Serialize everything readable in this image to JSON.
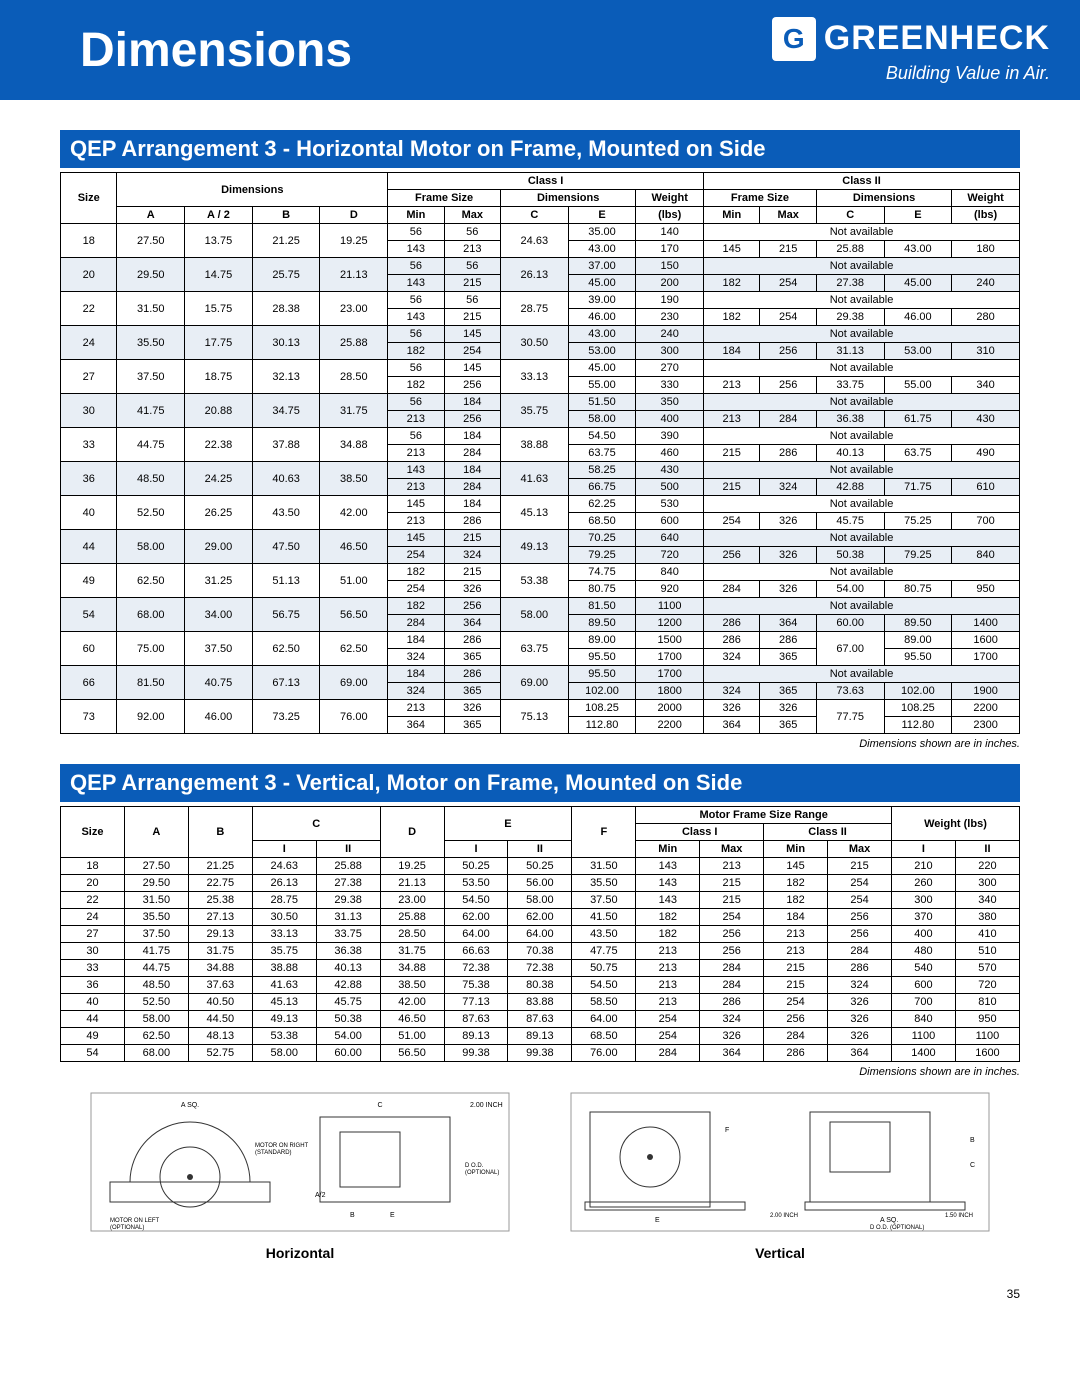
{
  "header": {
    "title": "Dimensions",
    "logo_mark": "G",
    "logo_name": "GREENHECK",
    "logo_tag": "Building Value in Air."
  },
  "section1": {
    "title": "QEP Arrangement 3 - Horizontal Motor on Frame, Mounted on Side",
    "groupHeaders": {
      "size": "Size",
      "dims": "Dimensions",
      "class1": "Class I",
      "class2": "Class II",
      "frameSize": "Frame Size",
      "dims2": "Dimensions",
      "weight": "Weight"
    },
    "colHeaders": [
      "A",
      "A / 2",
      "B",
      "D",
      "Min",
      "Max",
      "C",
      "E",
      "(lbs)",
      "Min",
      "Max",
      "C",
      "E",
      "(lbs)"
    ],
    "na": "Not available",
    "rows": [
      {
        "size": "18",
        "A": "27.50",
        "A2": "13.75",
        "B": "21.25",
        "D": "19.25",
        "sub": [
          {
            "min": "56",
            "max": "56",
            "C": "24.63",
            "E": "35.00",
            "W": "140",
            "c2": [
              "",
              "",
              "",
              "",
              ""
            ],
            "na": true
          },
          {
            "min": "143",
            "max": "213",
            "C": "",
            "E": "43.00",
            "W": "170",
            "c2": [
              "145",
              "215",
              "25.88",
              "43.00",
              "180"
            ],
            "na": false
          }
        ]
      },
      {
        "size": "20",
        "A": "29.50",
        "A2": "14.75",
        "B": "25.75",
        "D": "21.13",
        "sub": [
          {
            "min": "56",
            "max": "56",
            "C": "26.13",
            "E": "37.00",
            "W": "150",
            "c2": [
              "",
              "",
              "",
              "",
              ""
            ],
            "na": true
          },
          {
            "min": "143",
            "max": "215",
            "C": "",
            "E": "45.00",
            "W": "200",
            "c2": [
              "182",
              "254",
              "27.38",
              "45.00",
              "240"
            ],
            "na": false
          }
        ]
      },
      {
        "size": "22",
        "A": "31.50",
        "A2": "15.75",
        "B": "28.38",
        "D": "23.00",
        "sub": [
          {
            "min": "56",
            "max": "56",
            "C": "28.75",
            "E": "39.00",
            "W": "190",
            "c2": [
              "",
              "",
              "",
              "",
              ""
            ],
            "na": true
          },
          {
            "min": "143",
            "max": "215",
            "C": "",
            "E": "46.00",
            "W": "230",
            "c2": [
              "182",
              "254",
              "29.38",
              "46.00",
              "280"
            ],
            "na": false
          }
        ]
      },
      {
        "size": "24",
        "A": "35.50",
        "A2": "17.75",
        "B": "30.13",
        "D": "25.88",
        "sub": [
          {
            "min": "56",
            "max": "145",
            "C": "30.50",
            "E": "43.00",
            "W": "240",
            "c2": [
              "",
              "",
              "",
              "",
              ""
            ],
            "na": true
          },
          {
            "min": "182",
            "max": "254",
            "C": "",
            "E": "53.00",
            "W": "300",
            "c2": [
              "184",
              "256",
              "31.13",
              "53.00",
              "310"
            ],
            "na": false
          }
        ]
      },
      {
        "size": "27",
        "A": "37.50",
        "A2": "18.75",
        "B": "32.13",
        "D": "28.50",
        "sub": [
          {
            "min": "56",
            "max": "145",
            "C": "33.13",
            "E": "45.00",
            "W": "270",
            "c2": [
              "",
              "",
              "",
              "",
              ""
            ],
            "na": true
          },
          {
            "min": "182",
            "max": "256",
            "C": "",
            "E": "55.00",
            "W": "330",
            "c2": [
              "213",
              "256",
              "33.75",
              "55.00",
              "340"
            ],
            "na": false
          }
        ]
      },
      {
        "size": "30",
        "A": "41.75",
        "A2": "20.88",
        "B": "34.75",
        "D": "31.75",
        "sub": [
          {
            "min": "56",
            "max": "184",
            "C": "35.75",
            "E": "51.50",
            "W": "350",
            "c2": [
              "",
              "",
              "",
              "",
              ""
            ],
            "na": true
          },
          {
            "min": "213",
            "max": "256",
            "C": "",
            "E": "58.00",
            "W": "400",
            "c2": [
              "213",
              "284",
              "36.38",
              "61.75",
              "430"
            ],
            "na": false
          }
        ]
      },
      {
        "size": "33",
        "A": "44.75",
        "A2": "22.38",
        "B": "37.88",
        "D": "34.88",
        "sub": [
          {
            "min": "56",
            "max": "184",
            "C": "38.88",
            "E": "54.50",
            "W": "390",
            "c2": [
              "",
              "",
              "",
              "",
              ""
            ],
            "na": true
          },
          {
            "min": "213",
            "max": "284",
            "C": "",
            "E": "63.75",
            "W": "460",
            "c2": [
              "215",
              "286",
              "40.13",
              "63.75",
              "490"
            ],
            "na": false
          }
        ]
      },
      {
        "size": "36",
        "A": "48.50",
        "A2": "24.25",
        "B": "40.63",
        "D": "38.50",
        "sub": [
          {
            "min": "143",
            "max": "184",
            "C": "41.63",
            "E": "58.25",
            "W": "430",
            "c2": [
              "",
              "",
              "",
              "",
              ""
            ],
            "na": true
          },
          {
            "min": "213",
            "max": "284",
            "C": "",
            "E": "66.75",
            "W": "500",
            "c2": [
              "215",
              "324",
              "42.88",
              "71.75",
              "610"
            ],
            "na": false
          }
        ]
      },
      {
        "size": "40",
        "A": "52.50",
        "A2": "26.25",
        "B": "43.50",
        "D": "42.00",
        "sub": [
          {
            "min": "145",
            "max": "184",
            "C": "45.13",
            "E": "62.25",
            "W": "530",
            "c2": [
              "",
              "",
              "",
              "",
              ""
            ],
            "na": true
          },
          {
            "min": "213",
            "max": "286",
            "C": "",
            "E": "68.50",
            "W": "600",
            "c2": [
              "254",
              "326",
              "45.75",
              "75.25",
              "700"
            ],
            "na": false
          }
        ]
      },
      {
        "size": "44",
        "A": "58.00",
        "A2": "29.00",
        "B": "47.50",
        "D": "46.50",
        "sub": [
          {
            "min": "145",
            "max": "215",
            "C": "49.13",
            "E": "70.25",
            "W": "640",
            "c2": [
              "",
              "",
              "",
              "",
              ""
            ],
            "na": true
          },
          {
            "min": "254",
            "max": "324",
            "C": "",
            "E": "79.25",
            "W": "720",
            "c2": [
              "256",
              "326",
              "50.38",
              "79.25",
              "840"
            ],
            "na": false
          }
        ]
      },
      {
        "size": "49",
        "A": "62.50",
        "A2": "31.25",
        "B": "51.13",
        "D": "51.00",
        "sub": [
          {
            "min": "182",
            "max": "215",
            "C": "53.38",
            "E": "74.75",
            "W": "840",
            "c2": [
              "",
              "",
              "",
              "",
              ""
            ],
            "na": true
          },
          {
            "min": "254",
            "max": "326",
            "C": "",
            "E": "80.75",
            "W": "920",
            "c2": [
              "284",
              "326",
              "54.00",
              "80.75",
              "950"
            ],
            "na": false
          }
        ]
      },
      {
        "size": "54",
        "A": "68.00",
        "A2": "34.00",
        "B": "56.75",
        "D": "56.50",
        "sub": [
          {
            "min": "182",
            "max": "256",
            "C": "58.00",
            "E": "81.50",
            "W": "1100",
            "c2": [
              "",
              "",
              "",
              "",
              ""
            ],
            "na": true
          },
          {
            "min": "284",
            "max": "364",
            "C": "",
            "E": "89.50",
            "W": "1200",
            "c2": [
              "286",
              "364",
              "60.00",
              "89.50",
              "1400"
            ],
            "na": false
          }
        ]
      },
      {
        "size": "60",
        "A": "75.00",
        "A2": "37.50",
        "B": "62.50",
        "D": "62.50",
        "sub": [
          {
            "min": "184",
            "max": "286",
            "C": "63.75",
            "E": "89.00",
            "W": "1500",
            "c2": [
              "286",
              "286",
              "67.00",
              "89.00",
              "1600"
            ],
            "na": false
          },
          {
            "min": "324",
            "max": "365",
            "C": "",
            "E": "95.50",
            "W": "1700",
            "c2": [
              "324",
              "365",
              "",
              "95.50",
              "1700"
            ],
            "na": false
          }
        ]
      },
      {
        "size": "66",
        "A": "81.50",
        "A2": "40.75",
        "B": "67.13",
        "D": "69.00",
        "sub": [
          {
            "min": "184",
            "max": "286",
            "C": "69.00",
            "E": "95.50",
            "W": "1700",
            "c2": [
              "",
              "",
              "",
              "",
              ""
            ],
            "na": true
          },
          {
            "min": "324",
            "max": "365",
            "C": "",
            "E": "102.00",
            "W": "1800",
            "c2": [
              "324",
              "365",
              "73.63",
              "102.00",
              "1900"
            ],
            "na": false
          }
        ]
      },
      {
        "size": "73",
        "A": "92.00",
        "A2": "46.00",
        "B": "73.25",
        "D": "76.00",
        "sub": [
          {
            "min": "213",
            "max": "326",
            "C": "75.13",
            "E": "108.25",
            "W": "2000",
            "c2": [
              "326",
              "326",
              "77.75",
              "108.25",
              "2200"
            ],
            "na": false
          },
          {
            "min": "364",
            "max": "365",
            "C": "",
            "E": "112.80",
            "W": "2200",
            "c2": [
              "364",
              "365",
              "",
              "112.80",
              "2300"
            ],
            "na": false
          }
        ]
      }
    ]
  },
  "note": "Dimensions shown are in inches.",
  "section2": {
    "title": "QEP Arrangement 3 - Vertical, Motor on Frame, Mounted on Side",
    "groupHeaders": {
      "size": "Size",
      "A": "A",
      "B": "B",
      "C": "C",
      "D": "D",
      "E": "E",
      "F": "F",
      "mfsr": "Motor Frame Size Range",
      "c1": "Class I",
      "c2": "Class II",
      "wt": "Weight (lbs)"
    },
    "sub": [
      "I",
      "II",
      "I",
      "II",
      "Min",
      "Max",
      "Min",
      "Max",
      "I",
      "II"
    ],
    "rows": [
      [
        "18",
        "27.50",
        "21.25",
        "24.63",
        "25.88",
        "19.25",
        "50.25",
        "50.25",
        "31.50",
        "143",
        "213",
        "145",
        "215",
        "210",
        "220"
      ],
      [
        "20",
        "29.50",
        "22.75",
        "26.13",
        "27.38",
        "21.13",
        "53.50",
        "56.00",
        "35.50",
        "143",
        "215",
        "182",
        "254",
        "260",
        "300"
      ],
      [
        "22",
        "31.50",
        "25.38",
        "28.75",
        "29.38",
        "23.00",
        "54.50",
        "58.00",
        "37.50",
        "143",
        "215",
        "182",
        "254",
        "300",
        "340"
      ],
      [
        "24",
        "35.50",
        "27.13",
        "30.50",
        "31.13",
        "25.88",
        "62.00",
        "62.00",
        "41.50",
        "182",
        "254",
        "184",
        "256",
        "370",
        "380"
      ],
      [
        "27",
        "37.50",
        "29.13",
        "33.13",
        "33.75",
        "28.50",
        "64.00",
        "64.00",
        "43.50",
        "182",
        "256",
        "213",
        "256",
        "400",
        "410"
      ],
      [
        "30",
        "41.75",
        "31.75",
        "35.75",
        "36.38",
        "31.75",
        "66.63",
        "70.38",
        "47.75",
        "213",
        "256",
        "213",
        "284",
        "480",
        "510"
      ],
      [
        "33",
        "44.75",
        "34.88",
        "38.88",
        "40.13",
        "34.88",
        "72.38",
        "72.38",
        "50.75",
        "213",
        "284",
        "215",
        "286",
        "540",
        "570"
      ],
      [
        "36",
        "48.50",
        "37.63",
        "41.63",
        "42.88",
        "38.50",
        "75.38",
        "80.38",
        "54.50",
        "213",
        "284",
        "215",
        "324",
        "600",
        "720"
      ],
      [
        "40",
        "52.50",
        "40.50",
        "45.13",
        "45.75",
        "42.00",
        "77.13",
        "83.88",
        "58.50",
        "213",
        "286",
        "254",
        "326",
        "700",
        "810"
      ],
      [
        "44",
        "58.00",
        "44.50",
        "49.13",
        "50.38",
        "46.50",
        "87.63",
        "87.63",
        "64.00",
        "254",
        "324",
        "256",
        "326",
        "840",
        "950"
      ],
      [
        "49",
        "62.50",
        "48.13",
        "53.38",
        "54.00",
        "51.00",
        "89.13",
        "89.13",
        "68.50",
        "254",
        "326",
        "284",
        "326",
        "1100",
        "1100"
      ],
      [
        "54",
        "68.00",
        "52.75",
        "58.00",
        "60.00",
        "56.50",
        "99.38",
        "99.38",
        "76.00",
        "284",
        "364",
        "286",
        "364",
        "1400",
        "1600"
      ]
    ]
  },
  "diagrams": {
    "h_label": "Horizontal",
    "v_label": "Vertical",
    "h_annotations": [
      "A SQ.",
      "C",
      "2.00 INCH",
      "MOTOR ON RIGHT (STANDARD)",
      "D O.D. (OPTIONAL)",
      "A/2",
      "B",
      "E",
      "MOTOR ON LEFT (OPTIONAL)"
    ],
    "v_annotations": [
      "F",
      "E",
      "A SQ.",
      "2.00 INCH",
      "D O.D. (OPTIONAL)",
      "1.50 INCH",
      "B",
      "C"
    ]
  },
  "page_number": "35"
}
